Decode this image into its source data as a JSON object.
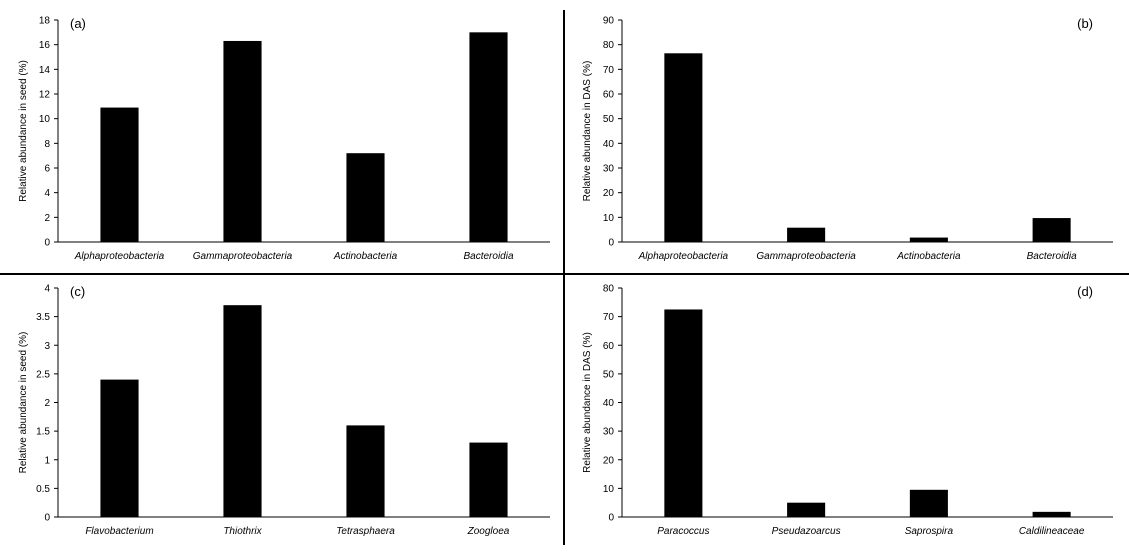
{
  "chart_data": [
    {
      "type": "bar",
      "panel_label": "(a)",
      "ylabel": "Relative abundance in seed (%)",
      "ylim": [
        0,
        18
      ],
      "yticks": [
        "0",
        "2",
        "4",
        "6",
        "8",
        "10",
        "12",
        "14",
        "16",
        "18"
      ],
      "categories": [
        "Alphaproteobacteria",
        "Gammaproteobacteria",
        "Actinobacteria",
        "Bacteroidia"
      ],
      "values": [
        10.9,
        16.3,
        7.2,
        17.0
      ],
      "bar_color": "#000000",
      "grid": false
    },
    {
      "type": "bar",
      "panel_label": "(b)",
      "ylabel": "Relative abundance in DAS (%)",
      "ylim": [
        0,
        90
      ],
      "yticks": [
        "0",
        "10",
        "20",
        "30",
        "40",
        "50",
        "60",
        "70",
        "80",
        "90"
      ],
      "categories": [
        "Alphaproteobacteria",
        "Gammaproteobacteria",
        "Actinobacteria",
        "Bacteroidia"
      ],
      "values": [
        76.5,
        5.8,
        1.8,
        9.7
      ],
      "bar_color": "#000000",
      "grid": false
    },
    {
      "type": "bar",
      "panel_label": "(c)",
      "ylabel": "Relative abundance in seed (%)",
      "ylim": [
        0,
        4
      ],
      "yticks": [
        "0",
        "0.5",
        "1",
        "1.5",
        "2",
        "2.5",
        "3",
        "3.5",
        "4"
      ],
      "categories": [
        "Flavobacterium",
        "Thiothrix",
        "Tetrasphaera",
        "Zoogloea"
      ],
      "values": [
        2.4,
        3.7,
        1.6,
        1.3
      ],
      "bar_color": "#000000",
      "grid": false
    },
    {
      "type": "bar",
      "panel_label": "(d)",
      "ylabel": "Relative abundance in DAS (%)",
      "ylim": [
        0,
        80
      ],
      "yticks": [
        "0",
        "10",
        "20",
        "30",
        "40",
        "50",
        "60",
        "70",
        "80"
      ],
      "categories": [
        "Paracoccus",
        "Pseudazoarcus",
        "Saprospira",
        "Caldilineaceae"
      ],
      "values": [
        72.5,
        5.0,
        9.5,
        1.8
      ],
      "bar_color": "#000000",
      "grid": false
    }
  ]
}
